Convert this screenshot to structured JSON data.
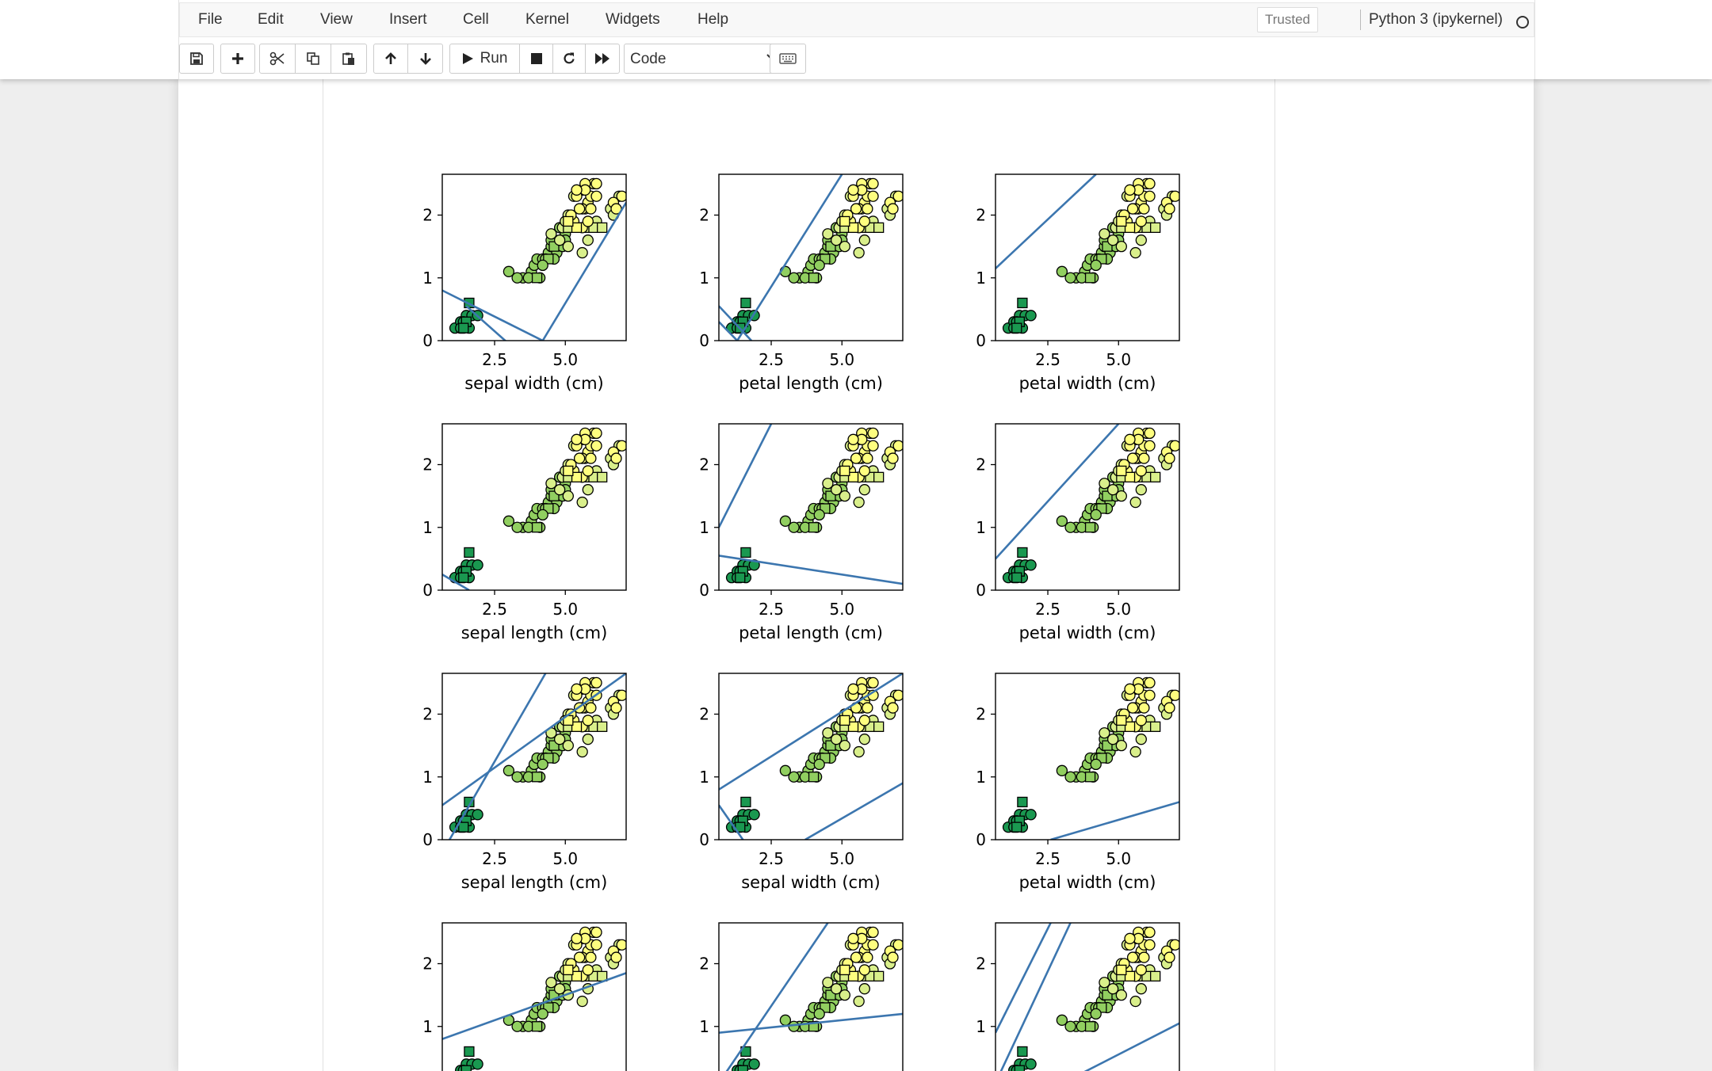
{
  "menubar": {
    "items": [
      "File",
      "Edit",
      "View",
      "Insert",
      "Cell",
      "Kernel",
      "Widgets",
      "Help"
    ],
    "trusted": "Trusted",
    "kernel": "Python 3 (ipykernel)"
  },
  "toolbar": {
    "icons": [
      "save-icon",
      "plus-icon",
      "cut-icon",
      "copy-icon",
      "paste-icon",
      "arrow-up-icon",
      "arrow-down-icon",
      "play-icon",
      "stop-icon",
      "restart-icon",
      "fast-forward-icon",
      "keyboard-icon"
    ],
    "run_label": "Run",
    "cell_type": "Code"
  },
  "chart_data": {
    "type": "scatter",
    "layout": "4 rows x 3 columns grid of scatter plots with lines (last row partially visible)",
    "shared_y": {
      "ticks": [
        "0",
        "1",
        "2"
      ],
      "ylim": [
        0,
        2.65
      ]
    },
    "shared_x": {
      "ticks": [
        "2.5",
        "5.0"
      ],
      "xlim": [
        0.65,
        7.15
      ]
    },
    "colors": {
      "marker_fill": [
        "#1a9850",
        "#5aae61",
        "#91cf60",
        "#d9ef8b",
        "#fefe7f"
      ],
      "line": "#3c76af",
      "marker_edge": "#000000"
    },
    "panels": [
      {
        "xlabel": "sepal width (cm)",
        "lines": [
          [
            [
              0.65,
              0.8
            ],
            [
              4.2,
              0
            ]
          ],
          [
            [
              4.2,
              0
            ],
            [
              7.15,
              2.2
            ]
          ],
          [
            [
              1.5,
              0.55
            ],
            [
              3.0,
              -0.05
            ]
          ]
        ]
      },
      {
        "xlabel": "petal length (cm)",
        "lines": [
          [
            [
              1.3,
              0
            ],
            [
              5.0,
              2.65
            ]
          ],
          [
            [
              0.65,
              0.55
            ],
            [
              1.8,
              0
            ]
          ],
          [
            [
              0.65,
              0.3
            ],
            [
              1.3,
              0
            ]
          ]
        ]
      },
      {
        "xlabel": "petal width (cm)",
        "lines": [
          [
            [
              0.65,
              1.15
            ],
            [
              4.2,
              2.65
            ]
          ]
        ]
      },
      {
        "xlabel": "sepal length (cm)",
        "lines": [
          [
            [
              0.65,
              0.25
            ],
            [
              1.6,
              0
            ]
          ]
        ]
      },
      {
        "xlabel": "petal length (cm)",
        "lines": [
          [
            [
              0.65,
              1.0
            ],
            [
              2.5,
              2.65
            ]
          ],
          [
            [
              0.65,
              0.55
            ],
            [
              7.15,
              0.1
            ]
          ]
        ]
      },
      {
        "xlabel": "petal width (cm)",
        "lines": [
          [
            [
              0.65,
              0.5
            ],
            [
              5.0,
              2.65
            ]
          ]
        ]
      },
      {
        "xlabel": "sepal length (cm)",
        "lines": [
          [
            [
              0.65,
              0.55
            ],
            [
              7.15,
              2.65
            ]
          ],
          [
            [
              0.65,
              -0.2
            ],
            [
              4.3,
              2.65
            ]
          ]
        ]
      },
      {
        "xlabel": "sepal width (cm)",
        "lines": [
          [
            [
              0.65,
              0.8
            ],
            [
              7.15,
              2.65
            ]
          ],
          [
            [
              3.7,
              0
            ],
            [
              7.15,
              0.9
            ]
          ],
          [
            [
              0.65,
              0.55
            ],
            [
              1.5,
              0
            ]
          ]
        ]
      },
      {
        "xlabel": "petal width (cm)",
        "lines": [
          [
            [
              2.6,
              0
            ],
            [
              7.15,
              0.6
            ]
          ]
        ]
      },
      {
        "xlabel": "",
        "lines": [
          [
            [
              0.65,
              0.8
            ],
            [
              7.15,
              1.85
            ]
          ]
        ]
      },
      {
        "xlabel": "",
        "lines": [
          [
            [
              0.65,
              0.1
            ],
            [
              4.5,
              2.65
            ]
          ],
          [
            [
              0.65,
              0.9
            ],
            [
              7.15,
              1.2
            ]
          ]
        ]
      },
      {
        "xlabel": "",
        "lines": [
          [
            [
              0.65,
              0.9
            ],
            [
              2.6,
              2.65
            ]
          ],
          [
            [
              0.65,
              0.1
            ],
            [
              3.3,
              2.65
            ]
          ],
          [
            [
              2.6,
              0
            ],
            [
              7.15,
              1.05
            ]
          ]
        ]
      }
    ],
    "points": [
      {
        "x": 1.1,
        "y": 0.2,
        "c": 0
      },
      {
        "x": 1.4,
        "y": 0.2,
        "c": 0
      },
      {
        "x": 1.6,
        "y": 0.2,
        "c": 0
      },
      {
        "x": 1.3,
        "y": 0.3,
        "c": 0
      },
      {
        "x": 1.5,
        "y": 0.4,
        "c": 0
      },
      {
        "x": 1.7,
        "y": 0.4,
        "c": 0
      },
      {
        "x": 1.3,
        "y": 0.2,
        "c": 0
      },
      {
        "x": 1.9,
        "y": 0.4,
        "c": 0
      },
      {
        "x": 1.4,
        "y": 0.3,
        "c": 0
      },
      {
        "x": 1.6,
        "y": 0.6,
        "c": 0,
        "m": "s"
      },
      {
        "x": 1.5,
        "y": 0.3,
        "c": 0,
        "m": "s"
      },
      {
        "x": 1.4,
        "y": 0.2,
        "c": 0,
        "m": "s"
      },
      {
        "x": 3.0,
        "y": 1.1,
        "c": 2
      },
      {
        "x": 3.5,
        "y": 1.0,
        "c": 2
      },
      {
        "x": 3.3,
        "y": 1.0,
        "c": 2
      },
      {
        "x": 3.8,
        "y": 1.1,
        "c": 2
      },
      {
        "x": 3.9,
        "y": 1.2,
        "c": 2
      },
      {
        "x": 4.0,
        "y": 1.3,
        "c": 2
      },
      {
        "x": 4.2,
        "y": 1.3,
        "c": 2
      },
      {
        "x": 4.4,
        "y": 1.4,
        "c": 2
      },
      {
        "x": 4.5,
        "y": 1.5,
        "c": 2
      },
      {
        "x": 4.7,
        "y": 1.4,
        "c": 2
      },
      {
        "x": 4.1,
        "y": 1.0,
        "c": 2
      },
      {
        "x": 4.6,
        "y": 1.3,
        "c": 2
      },
      {
        "x": 4.8,
        "y": 1.8,
        "c": 2
      },
      {
        "x": 4.9,
        "y": 1.5,
        "c": 2
      },
      {
        "x": 5.0,
        "y": 1.7,
        "c": 2
      },
      {
        "x": 4.3,
        "y": 1.3,
        "c": 2
      },
      {
        "x": 4.5,
        "y": 1.6,
        "c": 2
      },
      {
        "x": 3.7,
        "y": 1.0,
        "c": 2
      },
      {
        "x": 4.0,
        "y": 1.0,
        "c": 2,
        "m": "s"
      },
      {
        "x": 4.4,
        "y": 1.3,
        "c": 2,
        "m": "s"
      },
      {
        "x": 4.6,
        "y": 1.5,
        "c": 2,
        "m": "s"
      },
      {
        "x": 4.2,
        "y": 1.2,
        "c": 2
      },
      {
        "x": 5.0,
        "y": 1.6,
        "c": 2
      },
      {
        "x": 4.5,
        "y": 1.7,
        "c": 3
      },
      {
        "x": 4.9,
        "y": 1.8,
        "c": 3
      },
      {
        "x": 5.0,
        "y": 1.9,
        "c": 3
      },
      {
        "x": 5.1,
        "y": 2.0,
        "c": 3
      },
      {
        "x": 5.1,
        "y": 1.5,
        "c": 3
      },
      {
        "x": 5.6,
        "y": 1.4,
        "c": 3
      },
      {
        "x": 5.8,
        "y": 1.6,
        "c": 3
      },
      {
        "x": 6.1,
        "y": 1.9,
        "c": 3
      },
      {
        "x": 6.6,
        "y": 2.1,
        "c": 3
      },
      {
        "x": 6.7,
        "y": 2.0,
        "c": 3
      },
      {
        "x": 6.9,
        "y": 2.3,
        "c": 3
      },
      {
        "x": 5.7,
        "y": 2.1,
        "c": 3
      },
      {
        "x": 5.5,
        "y": 1.8,
        "c": 3,
        "m": "s"
      },
      {
        "x": 5.8,
        "y": 1.8,
        "c": 3,
        "m": "s"
      },
      {
        "x": 6.0,
        "y": 1.8,
        "c": 3,
        "m": "s"
      },
      {
        "x": 6.3,
        "y": 1.8,
        "c": 3,
        "m": "s"
      },
      {
        "x": 5.1,
        "y": 1.8,
        "c": 3,
        "m": "s"
      },
      {
        "x": 4.8,
        "y": 1.6,
        "c": 3
      },
      {
        "x": 5.3,
        "y": 2.3,
        "c": 3
      },
      {
        "x": 5.6,
        "y": 2.4,
        "c": 4
      },
      {
        "x": 5.8,
        "y": 2.2,
        "c": 4
      },
      {
        "x": 5.9,
        "y": 2.3,
        "c": 4
      },
      {
        "x": 6.0,
        "y": 2.5,
        "c": 4
      },
      {
        "x": 6.1,
        "y": 2.5,
        "c": 4
      },
      {
        "x": 5.7,
        "y": 2.5,
        "c": 4
      },
      {
        "x": 5.4,
        "y": 2.3,
        "c": 4
      },
      {
        "x": 5.6,
        "y": 2.1,
        "c": 4
      },
      {
        "x": 5.5,
        "y": 2.1,
        "c": 4
      },
      {
        "x": 5.9,
        "y": 2.1,
        "c": 4
      },
      {
        "x": 6.1,
        "y": 2.3,
        "c": 4
      },
      {
        "x": 5.3,
        "y": 1.9,
        "c": 4
      },
      {
        "x": 5.6,
        "y": 1.8,
        "c": 4
      },
      {
        "x": 5.2,
        "y": 2.0,
        "c": 4
      },
      {
        "x": 5.4,
        "y": 1.8,
        "c": 4,
        "m": "s"
      },
      {
        "x": 5.1,
        "y": 1.9,
        "c": 4,
        "m": "s"
      },
      {
        "x": 5.7,
        "y": 2.4,
        "c": 4
      },
      {
        "x": 6.7,
        "y": 2.2,
        "c": 4
      },
      {
        "x": 7.0,
        "y": 2.3,
        "c": 4
      },
      {
        "x": 6.8,
        "y": 2.1,
        "c": 4
      },
      {
        "x": 5.4,
        "y": 2.4,
        "c": 4
      },
      {
        "x": 5.8,
        "y": 1.9,
        "c": 4
      }
    ]
  }
}
